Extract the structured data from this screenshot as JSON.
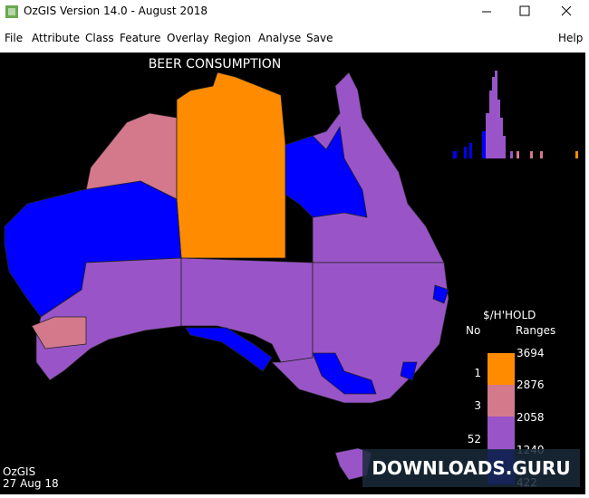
{
  "window": {
    "title": "OzGIS Version 14.0 - August 2018"
  },
  "menu": [
    "File",
    "Attribute",
    "Class",
    "Feature",
    "Overlay",
    "Region",
    "Analyse",
    "Save",
    "Help"
  ],
  "map": {
    "title": "BEER CONSUMPTION",
    "footer": [
      "OzGIS",
      "27 Aug 18"
    ]
  },
  "legend": {
    "unit": "$/H'HOLD",
    "count_header": "No",
    "range_header": "Ranges",
    "ranges": [
      "3694",
      "2876",
      "2058",
      "1240",
      "422"
    ],
    "counts": [
      "1",
      "3",
      "52"
    ]
  },
  "watermark": "DOWNLOADS.GURU"
}
